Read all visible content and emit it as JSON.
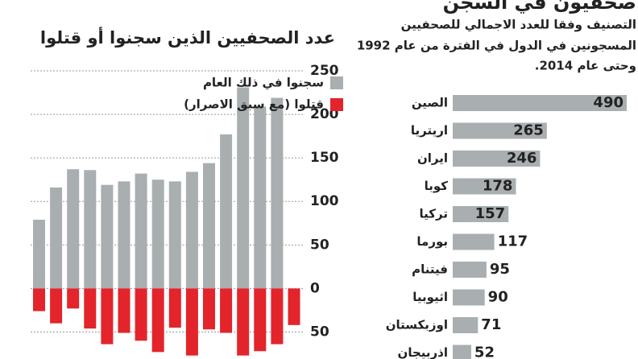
{
  "chart_data": [
    {
      "type": "bar",
      "title": "عدد الصحفيين الذين سجنوا أو قتلوا",
      "categories": [
        null,
        null,
        null,
        null,
        null,
        null,
        null,
        null,
        null,
        null,
        null,
        null,
        null,
        null,
        null,
        null
      ],
      "series": [
        {
          "name": "سجنوا في ذلك العام",
          "color": "#a9aeb1",
          "values": [
            79,
            116,
            137,
            136,
            119,
            123,
            132,
            125,
            123,
            134,
            144,
            177,
            231,
            209,
            219,
            null
          ]
        },
        {
          "name": "قتلوا (مع سبق الاصرار)",
          "color": "#e3242b",
          "values": [
            -26,
            -40,
            -23,
            -46,
            -64,
            -51,
            -60,
            -73,
            -45,
            -77,
            -47,
            -51,
            -77,
            -72,
            -64,
            -42
          ]
        }
      ],
      "ylim": [
        -81,
        255
      ],
      "yticks": [
        {
          "value": -50,
          "label": "50"
        },
        0,
        50,
        100,
        150,
        200,
        250
      ],
      "grid": true
    },
    {
      "type": "barh",
      "title": "صحفيون في السجن",
      "subtitle": [
        "التصنيف وفقا للعدد الاجمالي للصحفيين",
        "المسجونين في الدول في الفترة من عام 1992",
        "وحتى عام 2014."
      ],
      "categories": [
        "الصين",
        "اريتريا",
        "ايران",
        "كوبا",
        "تركيا",
        "بورما",
        "فيتنام",
        "اثيوبيا",
        "اوزبكستان",
        "اذربيجان"
      ],
      "values": [
        490,
        265,
        246,
        178,
        157,
        117,
        95,
        90,
        71,
        52
      ],
      "color": "#a9aeb1"
    }
  ]
}
